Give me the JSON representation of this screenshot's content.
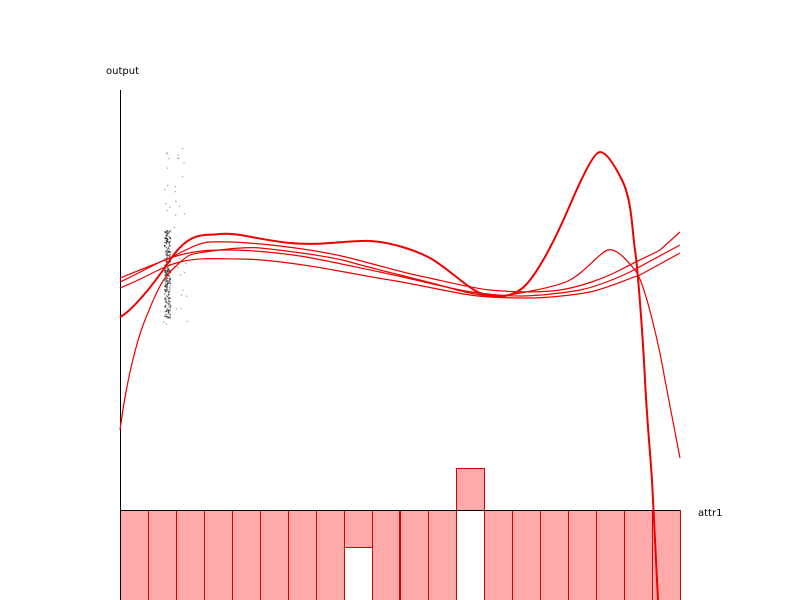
{
  "plot": {
    "y_label": "output",
    "x_label": "attr1"
  }
}
